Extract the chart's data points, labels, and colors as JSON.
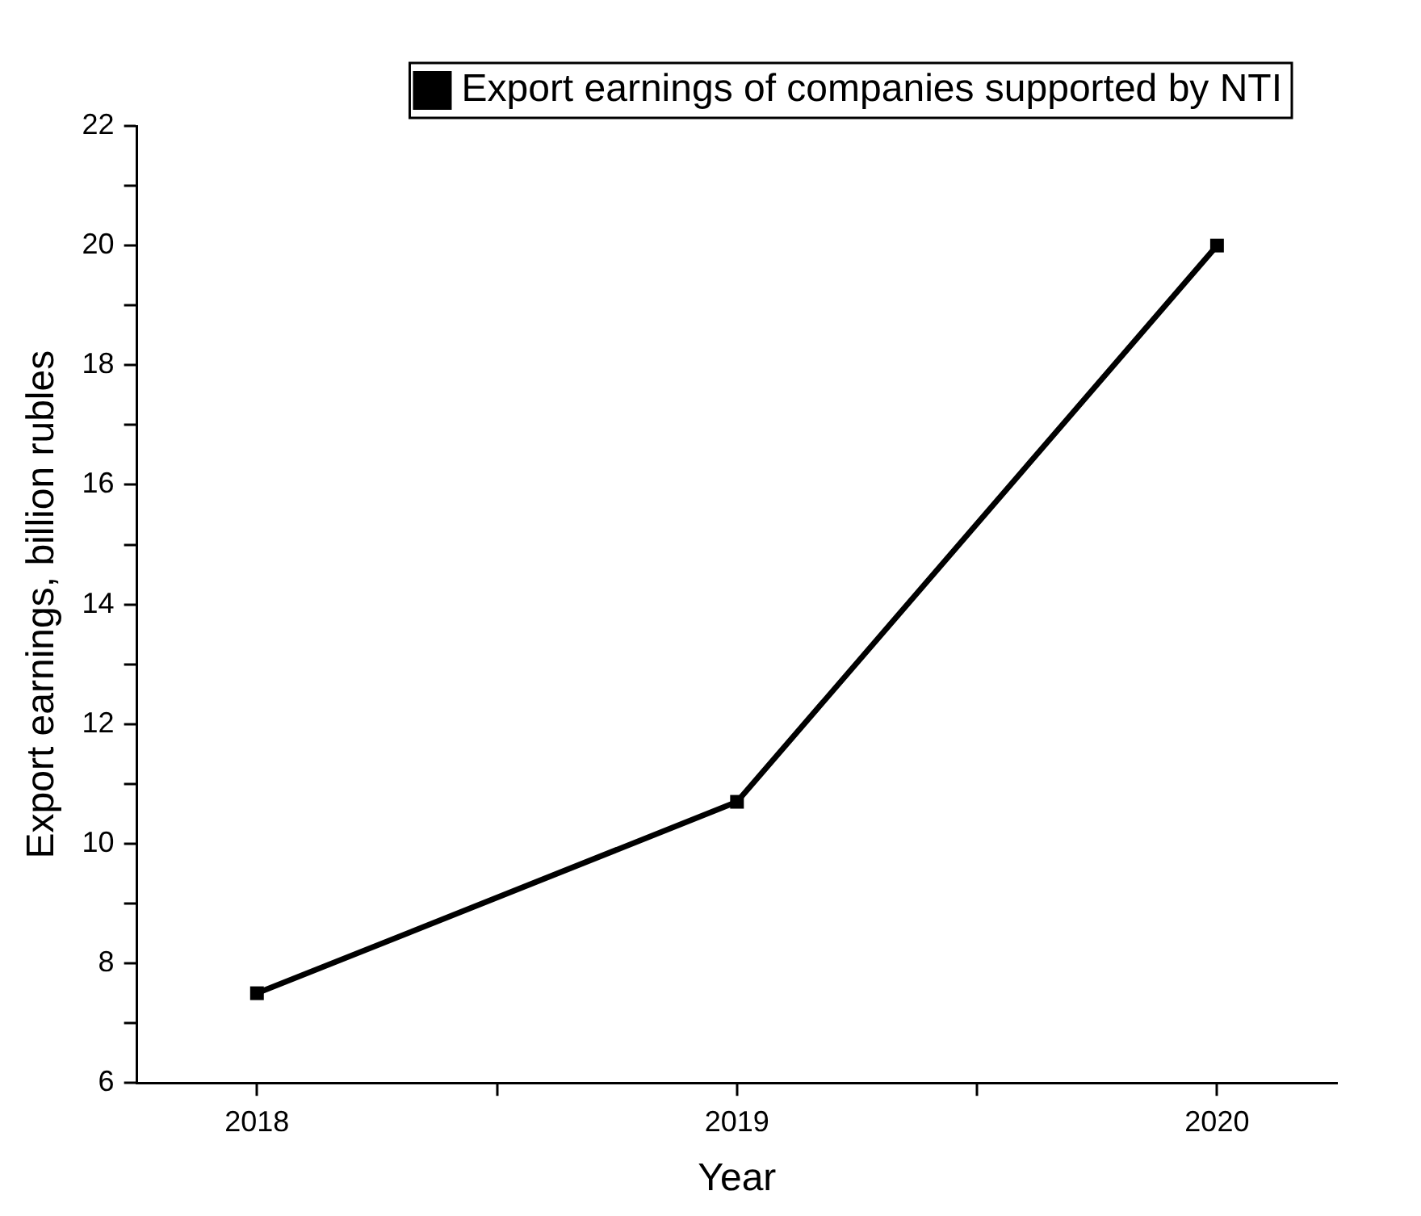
{
  "chart_data": {
    "type": "line",
    "xlabel": "Year",
    "ylabel": "Export earnings, billion rubles",
    "x": [
      2018,
      2019,
      2020
    ],
    "series": [
      {
        "name": "Export earnings of companies supported by NTI",
        "color": "#000000",
        "values": [
          7.5,
          10.7,
          20.0
        ]
      }
    ],
    "xlim": [
      2017.75,
      2020.25
    ],
    "xticks": [
      2018,
      {
        "value": 2018.5,
        "label": null
      },
      2019,
      {
        "value": 2019.5,
        "label": null
      },
      2020
    ],
    "ylim": [
      6,
      22
    ],
    "yticks": [
      6,
      {
        "value": 7,
        "label": null
      },
      8,
      {
        "value": 9,
        "label": null
      },
      10,
      {
        "value": 11,
        "label": null
      },
      12,
      {
        "value": 13,
        "label": null
      },
      14,
      {
        "value": 15,
        "label": null
      },
      16,
      {
        "value": 17,
        "label": null
      },
      18,
      {
        "value": 19,
        "label": null
      },
      20,
      {
        "value": 21,
        "label": null
      },
      22
    ],
    "legend": "top right",
    "marker": "square",
    "line_style": "solid",
    "grid": false
  }
}
